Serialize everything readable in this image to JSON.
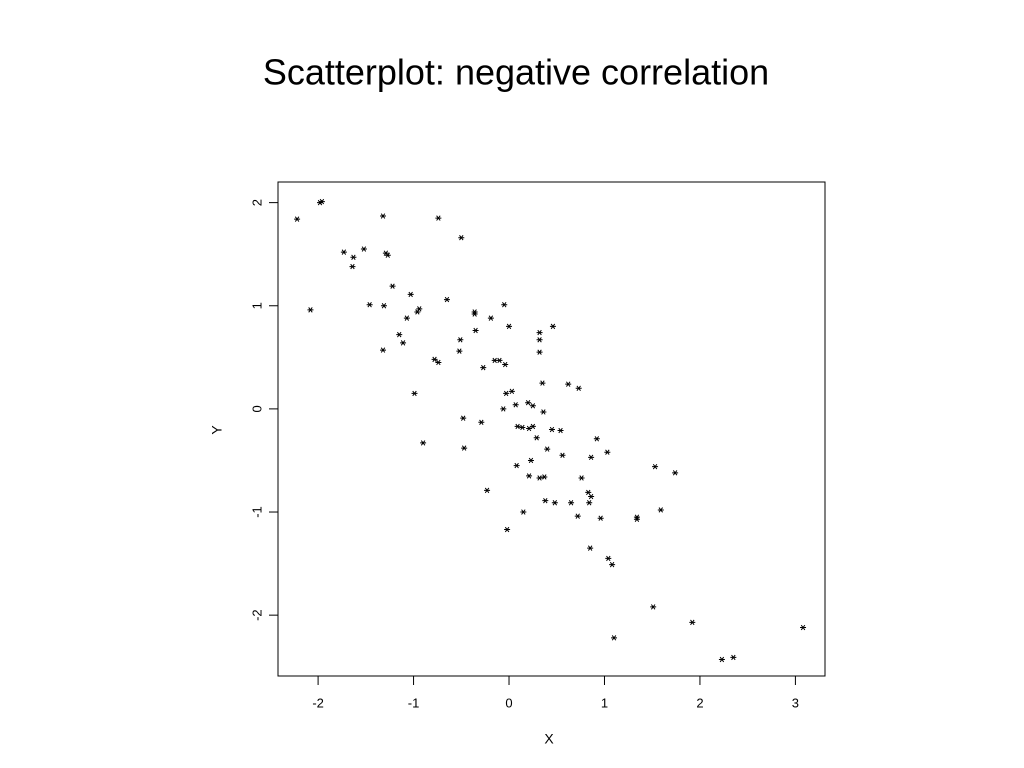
{
  "chart_data": {
    "type": "scatter",
    "title": "Scatterplot: negative correlation",
    "xlabel": "X",
    "ylabel": "Y",
    "color": "#000000",
    "x": [
      -2.22,
      -1.96,
      -1.98,
      -2.08,
      -1.73,
      -1.63,
      -1.64,
      -1.52,
      -1.32,
      -1.29,
      -1.27,
      -1.46,
      -1.31,
      -1.22,
      -1.03,
      -0.94,
      -0.96,
      -1.07,
      -1.15,
      -1.11,
      -1.32,
      -0.74,
      -0.5,
      -0.65,
      -0.36,
      -0.36,
      -0.19,
      -0.05,
      -0.35,
      0.0,
      -0.51,
      -0.52,
      -0.78,
      -0.74,
      -0.27,
      -0.15,
      -0.1,
      -0.04,
      0.32,
      0.32,
      0.32,
      0.46,
      0.35,
      0.62,
      0.73,
      -0.99,
      -0.03,
      0.03,
      -0.06,
      0.07,
      0.2,
      0.25,
      0.36,
      -0.48,
      -0.29,
      0.09,
      0.14,
      0.21,
      0.25,
      0.45,
      0.54,
      0.29,
      -0.9,
      -0.47,
      0.4,
      0.92,
      1.03,
      0.56,
      0.86,
      0.23,
      0.08,
      1.53,
      1.74,
      0.21,
      0.32,
      0.37,
      0.76,
      -0.23,
      0.83,
      0.86,
      0.38,
      0.48,
      0.65,
      0.84,
      0.15,
      0.72,
      0.96,
      1.34,
      1.34,
      1.59,
      -0.02,
      0.85,
      1.04,
      1.08,
      1.51,
      1.92,
      3.08,
      1.1,
      2.23,
      2.35
    ],
    "y": [
      1.84,
      2.01,
      2.0,
      0.96,
      1.52,
      1.47,
      1.38,
      1.55,
      1.87,
      1.51,
      1.49,
      1.01,
      1.0,
      1.19,
      1.11,
      0.97,
      0.94,
      0.88,
      0.72,
      0.64,
      0.57,
      1.85,
      1.66,
      1.06,
      0.94,
      0.92,
      0.88,
      1.01,
      0.76,
      0.8,
      0.67,
      0.56,
      0.48,
      0.45,
      0.4,
      0.47,
      0.47,
      0.43,
      0.74,
      0.67,
      0.55,
      0.8,
      0.25,
      0.24,
      0.2,
      0.15,
      0.15,
      0.17,
      0.0,
      0.04,
      0.06,
      0.03,
      -0.03,
      -0.09,
      -0.13,
      -0.17,
      -0.18,
      -0.19,
      -0.17,
      -0.2,
      -0.21,
      -0.28,
      -0.33,
      -0.38,
      -0.39,
      -0.29,
      -0.42,
      -0.45,
      -0.47,
      -0.5,
      -0.55,
      -0.56,
      -0.62,
      -0.65,
      -0.67,
      -0.66,
      -0.67,
      -0.79,
      -0.81,
      -0.85,
      -0.89,
      -0.91,
      -0.91,
      -0.91,
      -1.0,
      -1.04,
      -1.06,
      -1.05,
      -1.07,
      -0.98,
      -1.17,
      -1.35,
      -1.45,
      -1.51,
      -1.92,
      -2.07,
      -2.12,
      -2.22,
      -2.43,
      -2.41
    ],
    "xlim": [
      -2.42,
      3.31
    ],
    "ylim": [
      -2.59,
      2.2
    ],
    "xticks": [
      -2,
      -1,
      0,
      1,
      2,
      3
    ],
    "yticks": [
      -2,
      -1,
      0,
      1,
      2
    ]
  }
}
